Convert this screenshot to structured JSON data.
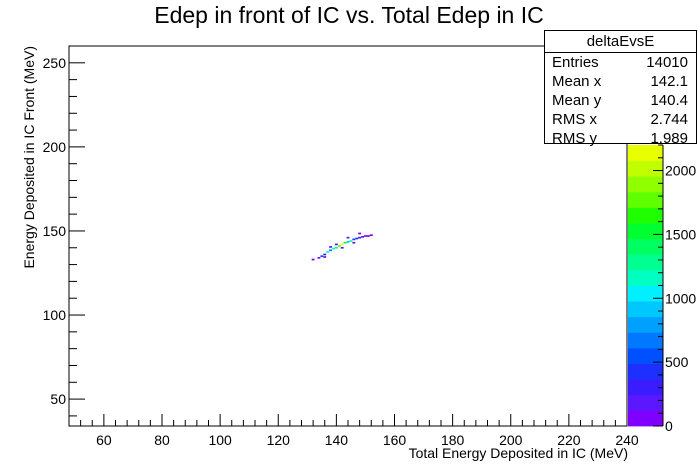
{
  "chart_data": {
    "type": "heatmap",
    "title": "Edep in front of IC vs. Total Edep in IC",
    "xlabel": "Total Energy Deposited in IC (MeV)",
    "ylabel": "Energy Deposited in IC Front (MeV)",
    "xlim": [
      48,
      240
    ],
    "ylim": [
      34,
      260
    ],
    "x_ticks": [
      60,
      80,
      100,
      120,
      140,
      160,
      180,
      200,
      220,
      240
    ],
    "y_ticks": [
      50,
      100,
      150,
      200,
      250
    ],
    "zlim": [
      0,
      2200
    ],
    "z_ticks": [
      0,
      500,
      1000,
      1500,
      2000
    ],
    "palette": [
      "#7f00ff",
      "#5b18ff",
      "#3a1cff",
      "#1e30ff",
      "#0050ff",
      "#0078ff",
      "#00a0ff",
      "#00c8ff",
      "#00f0ff",
      "#00ffc0",
      "#00ff90",
      "#00ff60",
      "#00ff30",
      "#20ff00",
      "#60ff00",
      "#90ff00",
      "#c0ff00",
      "#e8ff00"
    ],
    "bins": [
      {
        "x": 132,
        "y": 133,
        "z": 120
      },
      {
        "x": 134,
        "y": 134,
        "z": 200
      },
      {
        "x": 135,
        "y": 135,
        "z": 500
      },
      {
        "x": 136,
        "y": 136,
        "z": 350
      },
      {
        "x": 137,
        "y": 137.5,
        "z": 1000
      },
      {
        "x": 138,
        "y": 138.5,
        "z": 700
      },
      {
        "x": 139,
        "y": 139.5,
        "z": 1100
      },
      {
        "x": 140,
        "y": 140,
        "z": 1400
      },
      {
        "x": 141,
        "y": 141,
        "z": 1800
      },
      {
        "x": 142,
        "y": 142,
        "z": 2100
      },
      {
        "x": 143,
        "y": 143,
        "z": 1500
      },
      {
        "x": 144,
        "y": 143.5,
        "z": 900
      },
      {
        "x": 145,
        "y": 144,
        "z": 1200
      },
      {
        "x": 146,
        "y": 145,
        "z": 600
      },
      {
        "x": 147,
        "y": 145.5,
        "z": 400
      },
      {
        "x": 148,
        "y": 146,
        "z": 250
      },
      {
        "x": 149,
        "y": 146.5,
        "z": 150
      },
      {
        "x": 150,
        "y": 147,
        "z": 120
      },
      {
        "x": 151,
        "y": 147,
        "z": 100
      },
      {
        "x": 152,
        "y": 147.5,
        "z": 80
      },
      {
        "x": 140,
        "y": 142,
        "z": 300
      },
      {
        "x": 142,
        "y": 140,
        "z": 250
      },
      {
        "x": 144,
        "y": 146,
        "z": 200
      },
      {
        "x": 146,
        "y": 143,
        "z": 180
      },
      {
        "x": 148,
        "y": 148.5,
        "z": 90
      },
      {
        "x": 138,
        "y": 140.5,
        "z": 150
      },
      {
        "x": 136,
        "y": 134.5,
        "z": 120
      }
    ]
  },
  "stats": {
    "name": "deltaEvsE",
    "rows": [
      {
        "label": "Entries",
        "value": "14010"
      },
      {
        "label": "Mean x",
        "value": "142.1"
      },
      {
        "label": "Mean y",
        "value": "140.4"
      },
      {
        "label": "RMS x",
        "value": "2.744"
      },
      {
        "label": "RMS y",
        "value": "1.989"
      }
    ]
  }
}
